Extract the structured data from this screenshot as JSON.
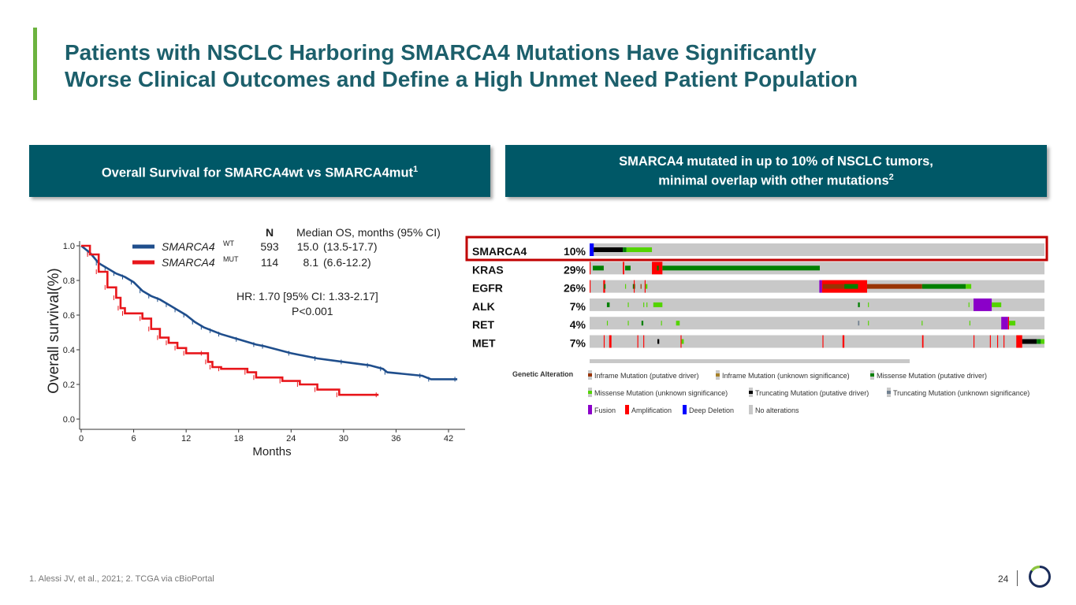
{
  "title_line1": "Patients with NSCLC Harboring SMARCA4 Mutations Have Significantly",
  "title_line2": "Worse Clinical Outcomes and Define a High Unmet Need Patient Population",
  "left_header": "Overall Survival for SMARCA4wt vs SMARCA4mut",
  "left_header_sup": "1",
  "right_header_line1": "SMARCA4 mutated in up to 10% of NSCLC tumors,",
  "right_header_line2": "minimal overlap with other mutations",
  "right_header_sup": "2",
  "footnote": "1. Alessi JV, et al., 2021; 2. TCGA via cBioPortal",
  "page_number": "24",
  "colors": {
    "brand_teal": "#005867",
    "accent_green": "#6cb33f",
    "wt": "#1f4e8c",
    "mut": "#e8161b"
  },
  "chart_data": [
    {
      "type": "line",
      "subtype": "kaplan-meier",
      "xlabel": "Months",
      "ylabel": "Overall survival(%)",
      "xlim": [
        0,
        43
      ],
      "ylim": [
        0,
        1.0
      ],
      "xticks": [
        "0",
        "6",
        "12",
        "18",
        "24",
        "30",
        "36",
        "42"
      ],
      "yticks": [
        "0.0",
        "0.2",
        "0.4",
        "0.6",
        "0.8",
        "1.0"
      ],
      "legend_header_n": "N",
      "legend_header_median": "Median OS, months (95% CI)",
      "annotation_hr": "HR: 1.70 [95% CI: 1.33-2.17]",
      "annotation_p": "P<0.001",
      "series": [
        {
          "name": "SMARCA4",
          "sup": "WT",
          "n": "593",
          "median": "15.0",
          "ci": "(13.5-17.7)",
          "color": "#1f4e8c",
          "x": [
            0,
            1,
            2,
            3,
            4,
            5,
            6,
            7,
            8,
            9,
            10,
            11,
            12,
            13,
            14,
            15,
            16,
            18,
            20,
            21,
            24,
            27,
            30,
            33,
            34.5,
            35,
            39,
            40,
            43
          ],
          "y": [
            1,
            0.96,
            0.9,
            0.87,
            0.84,
            0.82,
            0.79,
            0.74,
            0.71,
            0.69,
            0.66,
            0.63,
            0.6,
            0.56,
            0.53,
            0.51,
            0.49,
            0.46,
            0.43,
            0.42,
            0.38,
            0.35,
            0.33,
            0.31,
            0.29,
            0.27,
            0.25,
            0.23,
            0.23
          ]
        },
        {
          "name": "SMARCA4",
          "sup": "MUT",
          "n": "114",
          "median": "8.1",
          "ci": "(6.6-12.2)",
          "color": "#e8161b",
          "x": [
            0,
            1,
            2,
            3,
            4,
            4.5,
            5,
            7,
            8,
            9,
            10,
            11,
            12,
            14,
            14.5,
            15,
            16,
            19,
            20,
            23,
            25,
            27,
            29.5,
            34
          ],
          "y": [
            1,
            0.95,
            0.85,
            0.76,
            0.7,
            0.64,
            0.61,
            0.58,
            0.52,
            0.47,
            0.44,
            0.41,
            0.38,
            0.38,
            0.33,
            0.3,
            0.29,
            0.27,
            0.24,
            0.22,
            0.2,
            0.17,
            0.14,
            0.14
          ],
          "step": true
        }
      ]
    },
    {
      "type": "heatmap",
      "subtype": "oncoprint",
      "samples": 1000,
      "genes": [
        {
          "gene": "SMARCA4",
          "pct": "10%",
          "highlight": true,
          "alts": [
            [
              0,
              9,
              "deep_deletion"
            ],
            [
              9,
              73,
              "truncating_pd"
            ],
            [
              73,
              81,
              "missense_pd"
            ],
            [
              81,
              137,
              "missense_us"
            ]
          ]
        },
        {
          "gene": "KRAS",
          "pct": "29%",
          "alts": [
            [
              0,
              2,
              "amplification"
            ],
            [
              7,
              31,
              "missense_pd"
            ],
            [
              73,
              76,
              "amplification"
            ],
            [
              78,
              90,
              "missense_pd"
            ],
            [
              137,
              160,
              "amplification"
            ],
            [
              148,
              152,
              "missense_pd"
            ],
            [
              160,
              506,
              "missense_pd"
            ]
          ]
        },
        {
          "gene": "EGFR",
          "pct": "26%",
          "alts": [
            [
              0,
              2,
              "amplification"
            ],
            [
              30,
              34,
              "amplification"
            ],
            [
              32,
              35,
              "missense_pd"
            ],
            [
              78,
              80,
              "missense_us"
            ],
            [
              95,
              100,
              "missense_pd"
            ],
            [
              97,
              99,
              "amplification"
            ],
            [
              112,
              114,
              "inframe_pd"
            ],
            [
              121,
              123,
              "amplification"
            ],
            [
              123,
              127,
              "missense_us"
            ],
            [
              505,
              511,
              "fusion"
            ],
            [
              511,
              610,
              "amplification"
            ],
            [
              513,
              560,
              "inframe_pd"
            ],
            [
              560,
              590,
              "missense_pd"
            ],
            [
              610,
              731,
              "inframe_pd"
            ],
            [
              731,
              827,
              "missense_pd"
            ],
            [
              827,
              839,
              "missense_us"
            ]
          ]
        },
        {
          "gene": "ALK",
          "pct": "7%",
          "alts": [
            [
              38,
              44,
              "missense_pd"
            ],
            [
              84,
              86,
              "missense_us"
            ],
            [
              118,
              120,
              "missense_us"
            ],
            [
              125,
              127,
              "missense_us"
            ],
            [
              140,
              160,
              "missense_us"
            ],
            [
              590,
              594,
              "missense_pd"
            ],
            [
              612,
              614,
              "missense_us"
            ],
            [
              833,
              835,
              "missense_us"
            ],
            [
              844,
              884,
              "fusion"
            ],
            [
              884,
              905,
              "missense_us"
            ]
          ]
        },
        {
          "gene": "RET",
          "pct": "4%",
          "alts": [
            [
              38,
              40,
              "missense_us"
            ],
            [
              84,
              86,
              "missense_us"
            ],
            [
              114,
              118,
              "missense_pd"
            ],
            [
              157,
              159,
              "missense_us"
            ],
            [
              190,
              198,
              "missense_us"
            ],
            [
              590,
              593,
              "truncating_us"
            ],
            [
              612,
              614,
              "missense_us"
            ],
            [
              730,
              732,
              "missense_us"
            ],
            [
              835,
              837,
              "missense_us"
            ],
            [
              905,
              920,
              "fusion"
            ],
            [
              920,
              922,
              "amplification"
            ],
            [
              922,
              936,
              "missense_us"
            ]
          ]
        },
        {
          "gene": "MET",
          "pct": "7%",
          "alts": [
            [
              31,
              33,
              "amplification"
            ],
            [
              43,
              48,
              "amplification"
            ],
            [
              105,
              107,
              "amplification"
            ],
            [
              118,
              120,
              "amplification"
            ],
            [
              149,
              153,
              "truncating_pd"
            ],
            [
              200,
              202,
              "amplification"
            ],
            [
              202,
              207,
              "missense_us"
            ],
            [
              512,
              514,
              "amplification"
            ],
            [
              556,
              560,
              "amplification"
            ],
            [
              731,
              734,
              "amplification"
            ],
            [
              844,
              846,
              "amplification"
            ],
            [
              880,
              882,
              "amplification"
            ],
            [
              896,
              898,
              "amplification"
            ],
            [
              910,
              912,
              "amplification"
            ],
            [
              938,
              951,
              "amplification"
            ],
            [
              951,
              983,
              "truncating_pd"
            ],
            [
              983,
              992,
              "missense_pd"
            ],
            [
              992,
              1000,
              "missense_us"
            ]
          ]
        }
      ],
      "legend_title": "Genetic Alteration",
      "legend": [
        {
          "key": "inframe_pd",
          "label": "Inframe Mutation (putative driver)",
          "color": "#993404"
        },
        {
          "key": "inframe_us",
          "label": "Inframe Mutation (unknown significance)",
          "color": "#a68028"
        },
        {
          "key": "missense_pd",
          "label": "Missense Mutation (putative driver)",
          "color": "#008000"
        },
        {
          "key": "missense_us",
          "label": "Missense Mutation (unknown significance)",
          "color": "#53d400"
        },
        {
          "key": "truncating_pd",
          "label": "Truncating Mutation (putative driver)",
          "color": "#000000"
        },
        {
          "key": "truncating_us",
          "label": "Truncating Mutation (unknown significance)",
          "color": "#708090"
        },
        {
          "key": "fusion",
          "label": "Fusion",
          "color": "#8b00c9"
        },
        {
          "key": "amplification",
          "label": "Amplification",
          "color": "#ff0000"
        },
        {
          "key": "deep_deletion",
          "label": "Deep Deletion",
          "color": "#0000ff"
        },
        {
          "key": "none",
          "label": "No alterations",
          "color": "#c8c8c8"
        }
      ]
    }
  ]
}
